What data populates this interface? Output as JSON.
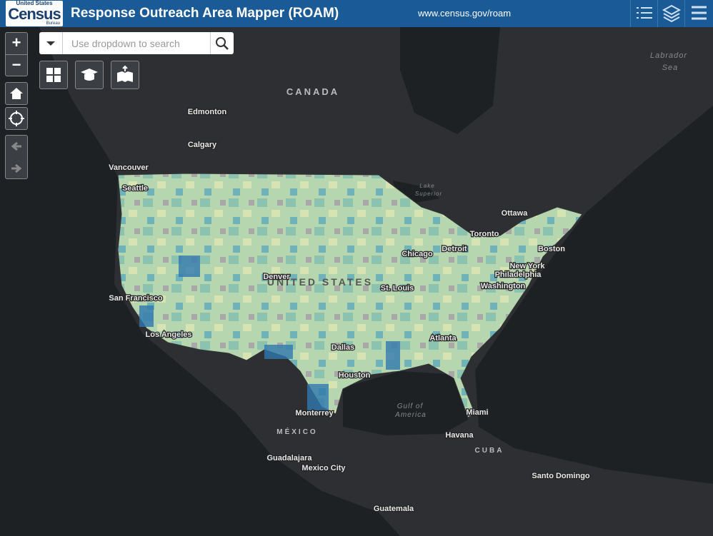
{
  "header": {
    "logo": {
      "top": "United States",
      "main": "Census",
      "bottom": "Bureau"
    },
    "title": "Response Outreach Area Mapper (ROAM)",
    "url": "www.census.gov/roam"
  },
  "search": {
    "placeholder": "Use dropdown to search"
  },
  "zoom": {
    "in": "+",
    "out": "−"
  },
  "map_labels": {
    "canada": "CANADA",
    "united_states": "UNITED STATES",
    "mexico": "MÉXICO",
    "cuba": "CUBA",
    "labrador_sea": [
      "Labrador",
      "Sea"
    ],
    "lake_superior": [
      "Lake",
      "Superior"
    ],
    "gulf_of_mexico": [
      "Gulf of",
      "America"
    ],
    "cities": [
      "Edmonton",
      "Calgary",
      "Vancouver",
      "Seattle",
      "Ottawa",
      "Toronto",
      "Chicago",
      "Detroit",
      "Boston",
      "New York",
      "Philadelphia",
      "Washington",
      "St. Louis",
      "Denver",
      "San Francisco",
      "Los Angeles",
      "Dallas",
      "Houston",
      "Atlanta",
      "Miami",
      "Monterrey",
      "Guadalajara",
      "Mexico City",
      "Havana",
      "Santo Domingo",
      "Guatemala"
    ]
  }
}
